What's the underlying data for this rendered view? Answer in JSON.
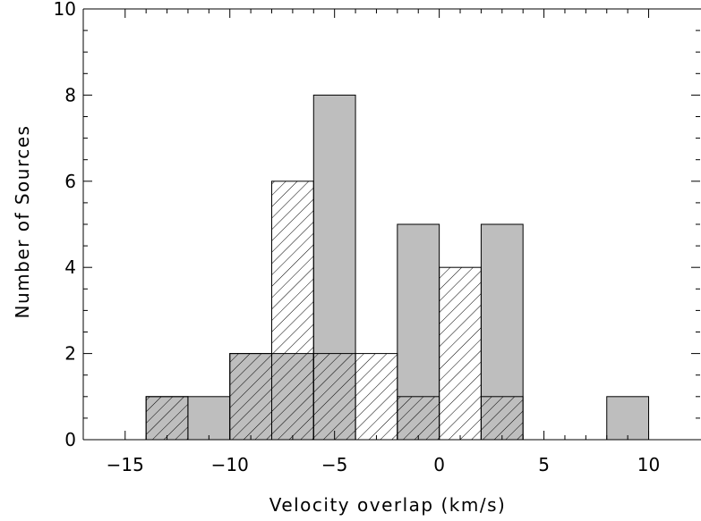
{
  "chart_data": {
    "type": "bar",
    "title": "",
    "xlabel": "Velocity overlap (km/s)",
    "ylabel": "Number of Sources",
    "xlim": [
      -17,
      12.5
    ],
    "ylim": [
      0,
      10
    ],
    "bin_width": 2,
    "x_ticks": [
      -15,
      -10,
      -5,
      0,
      5,
      10
    ],
    "x_tick_labels": [
      "−15",
      "−10",
      "−5",
      "0",
      "5",
      "10"
    ],
    "y_ticks": [
      0,
      2,
      4,
      6,
      8,
      10
    ],
    "y_tick_labels": [
      "0",
      "2",
      "4",
      "6",
      "8",
      "10"
    ],
    "grid": false,
    "legend": "none",
    "series": [
      {
        "style": "gray-filled",
        "bins": [
          {
            "x_start": -14,
            "value": 1
          },
          {
            "x_start": -12,
            "value": 1
          },
          {
            "x_start": -10,
            "value": 2
          },
          {
            "x_start": -8,
            "value": 2
          },
          {
            "x_start": -6,
            "value": 8
          },
          {
            "x_start": -2,
            "value": 5
          },
          {
            "x_start": 2,
            "value": 5
          },
          {
            "x_start": 8,
            "value": 1
          }
        ]
      },
      {
        "style": "hatched",
        "bins": [
          {
            "x_start": -14,
            "value": 1
          },
          {
            "x_start": -10,
            "value": 2
          },
          {
            "x_start": -8,
            "value": 6
          },
          {
            "x_start": -6,
            "value": 2
          },
          {
            "x_start": -4,
            "value": 2
          },
          {
            "x_start": -2,
            "value": 1
          },
          {
            "x_start": 0,
            "value": 4
          },
          {
            "x_start": 2,
            "value": 1
          }
        ]
      }
    ],
    "colors": {
      "gray_fill": "#bebebe",
      "outline": "#000000",
      "hatch": "#000000"
    }
  }
}
